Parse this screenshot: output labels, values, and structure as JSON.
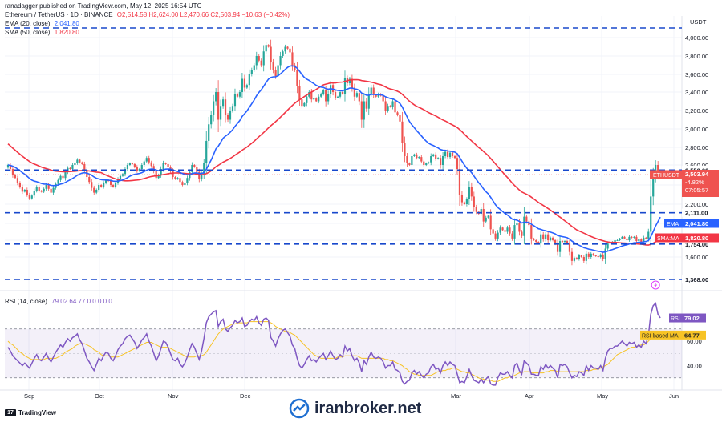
{
  "header": {
    "published": "ranadagger published on TradingView.com, May 12, 2025 16:54 UTC"
  },
  "legend": {
    "symbol": "Ethereum / TetherUS · 1D · BINANCE",
    "ohlc": "O2,514.58 H2,624.00 L2,470.66 C2,503.94 −10.63 (−0.42%)",
    "ema": {
      "label": "EMA (20, close)",
      "value": "2,041.80"
    },
    "sma": {
      "label": "SMA (50, close)",
      "value": "1,820.80"
    },
    "rsi": {
      "label": "RSI (14, close)",
      "values": "79.02 64.77 0 0 0 0 0"
    }
  },
  "colors": {
    "up": "#26a69a",
    "down": "#ef5350",
    "ema": "#2962ff",
    "sma": "#f23645",
    "rsi": "#7e57c2",
    "rsi_ma": "#f7c325",
    "level_line": "#1848cc"
  },
  "chart_data": [
    {
      "type": "candlestick",
      "pair": "ETHUSDT",
      "currency_label": "USDT",
      "y_ticks": [
        1600,
        1800,
        2000,
        2200,
        2400,
        2600,
        2800,
        3000,
        3200,
        3400,
        3600,
        3800,
        4000
      ],
      "y_tick_labels": [
        "1,600.00",
        "1,800.00",
        "2,000.00",
        "2,200.00",
        "2,400.00",
        "2,600.00",
        "2,800.00",
        "3,000.00",
        "3,200.00",
        "3,400.00",
        "3,600.00",
        "3,800.00",
        "4,000.00"
      ],
      "ylim": [
        1368,
        4100
      ],
      "x_labels": [
        "Sep",
        "Oct",
        "Nov",
        "Dec",
        "Mar",
        "Apr",
        "May",
        "Jun"
      ],
      "horizontal_levels": [
        {
          "value": 4100,
          "label": ""
        },
        {
          "value": 2550,
          "label": "2,550.00"
        },
        {
          "value": 2111,
          "label": "2,111.00"
        },
        {
          "value": 1754,
          "label": "1,754.00"
        },
        {
          "value": 1368,
          "label": "1,368.00"
        }
      ],
      "last_price": {
        "symbol": "ETHUSDT",
        "value": "2,503.94",
        "change": "-4.82%",
        "countdown": "07:05:57"
      },
      "ema_tag": {
        "name": "EMA",
        "value": "2,041.80"
      },
      "sma_tag": {
        "name": "SMA:MA",
        "value": "1,820.80"
      },
      "close_series_note": "daily closes, approx.",
      "closes": [
        2600,
        2560,
        2500,
        2470,
        2420,
        2380,
        2330,
        2350,
        2300,
        2260,
        2290,
        2340,
        2380,
        2340,
        2330,
        2360,
        2400,
        2360,
        2320,
        2370,
        2410,
        2450,
        2490,
        2470,
        2530,
        2570,
        2560,
        2600,
        2620,
        2660,
        2630,
        2610,
        2550,
        2480,
        2430,
        2370,
        2320,
        2350,
        2400,
        2380,
        2420,
        2450,
        2440,
        2400,
        2380,
        2420,
        2460,
        2490,
        2510,
        2560,
        2600,
        2620,
        2610,
        2580,
        2540,
        2560,
        2600,
        2640,
        2680,
        2630,
        2590,
        2540,
        2470,
        2500,
        2560,
        2620,
        2610,
        2580,
        2540,
        2480,
        2460,
        2470,
        2430,
        2400,
        2420,
        2470,
        2530,
        2600,
        2580,
        2530,
        2460,
        2510,
        2620,
        2870,
        3050,
        3150,
        3300,
        3400,
        3100,
        3250,
        3320,
        3150,
        3100,
        3200,
        3250,
        3380,
        3350,
        3400,
        3550,
        3450,
        3480,
        3600,
        3650,
        3700,
        3800,
        3750,
        3700,
        3850,
        3920,
        3900,
        3730,
        3650,
        3580,
        3700,
        3800,
        3850,
        3900,
        3880,
        3840,
        3700,
        3650,
        3470,
        3320,
        3250,
        3280,
        3350,
        3400,
        3320,
        3330,
        3300,
        3350,
        3380,
        3420,
        3300,
        3380,
        3480,
        3400,
        3340,
        3350,
        3400,
        3380,
        3560,
        3500,
        3550,
        3450,
        3350,
        3390,
        3300,
        3100,
        3300,
        3220,
        3380,
        3450,
        3370,
        3350,
        3380,
        3360,
        3300,
        3200,
        3250,
        3240,
        3300,
        3180,
        3150,
        3080,
        2850,
        2700,
        2620,
        2600,
        2700,
        2720,
        2680,
        2690,
        2640,
        2600,
        2620,
        2630,
        2700,
        2720,
        2670,
        2680,
        2600,
        2700,
        2750,
        2690,
        2740,
        2700,
        2680,
        2560,
        2300,
        2220,
        2200,
        2250,
        2380,
        2280,
        2170,
        2120,
        2100,
        2150,
        2020,
        2060,
        2080,
        1930,
        1880,
        1820,
        1890,
        1950,
        1920,
        1900,
        1950,
        1880,
        1820,
        1980,
        2000,
        1900,
        1850,
        2070,
        2020,
        1980,
        1820,
        1800,
        1780,
        1760,
        1870,
        1810,
        1870,
        1800,
        1830,
        1800,
        1760,
        1660,
        1790,
        1780,
        1790,
        1760,
        1660,
        1560,
        1590,
        1580,
        1620,
        1600,
        1560,
        1640,
        1600,
        1640,
        1620,
        1610,
        1600,
        1630,
        1580,
        1700,
        1760,
        1780,
        1780,
        1800,
        1800,
        1820,
        1840,
        1820,
        1800,
        1840,
        1830,
        1840,
        1790,
        1810,
        1780,
        1830,
        1820,
        1900,
        2280,
        2480,
        2600,
        2500,
        2504
      ]
    },
    {
      "type": "line",
      "name": "RSI (14, close)",
      "ylim": [
        20,
        100
      ],
      "y_ticks": [
        40,
        60
      ],
      "y_tick_labels": [
        "40.00",
        "60.00"
      ],
      "band": [
        30,
        70
      ],
      "rsi_tag": {
        "name": "RSI",
        "value": "79.02"
      },
      "rsi_ma_tag": {
        "name": "RSI-based MA",
        "value": "64.77"
      },
      "rsi": [
        55,
        52,
        48,
        46,
        44,
        42,
        40,
        42,
        40,
        38,
        42,
        46,
        49,
        45,
        44,
        47,
        50,
        46,
        43,
        47,
        51,
        54,
        57,
        55,
        59,
        62,
        60,
        63,
        64,
        66,
        61,
        58,
        52,
        46,
        43,
        39,
        36,
        41,
        46,
        44,
        48,
        51,
        50,
        46,
        44,
        48,
        53,
        56,
        58,
        62,
        64,
        65,
        62,
        59,
        54,
        57,
        61,
        63,
        66,
        60,
        56,
        50,
        44,
        48,
        54,
        60,
        59,
        55,
        50,
        45,
        44,
        46,
        41,
        39,
        42,
        47,
        53,
        58,
        55,
        50,
        45,
        52,
        62,
        75,
        80,
        82,
        84,
        85,
        72,
        76,
        78,
        70,
        68,
        71,
        73,
        77,
        75,
        76,
        79,
        72,
        73,
        76,
        78,
        77,
        80,
        75,
        73,
        78,
        79,
        77,
        63,
        60,
        56,
        62,
        66,
        69,
        70,
        67,
        64,
        57,
        54,
        46,
        40,
        38,
        41,
        45,
        48,
        44,
        45,
        43,
        46,
        48,
        50,
        45,
        48,
        52,
        48,
        45,
        46,
        49,
        47,
        56,
        52,
        54,
        48,
        44,
        46,
        42,
        35,
        44,
        41,
        47,
        51,
        47,
        46,
        47,
        46,
        43,
        38,
        40,
        40,
        43,
        37,
        36,
        34,
        27,
        25,
        27,
        28,
        34,
        36,
        33,
        35,
        32,
        30,
        33,
        34,
        39,
        41,
        37,
        38,
        34,
        40,
        43,
        40,
        43,
        41,
        40,
        33,
        26,
        27,
        26,
        31,
        37,
        32,
        28,
        27,
        26,
        29,
        26,
        29,
        31,
        25,
        24,
        24,
        30,
        34,
        33,
        33,
        35,
        32,
        30,
        40,
        42,
        36,
        33,
        44,
        42,
        40,
        33,
        33,
        32,
        32,
        39,
        37,
        41,
        38,
        40,
        38,
        36,
        30,
        41,
        40,
        41,
        39,
        34,
        30,
        32,
        31,
        35,
        34,
        32,
        40,
        36,
        40,
        38,
        38,
        37,
        40,
        36,
        46,
        52,
        54,
        54,
        56,
        56,
        58,
        60,
        58,
        56,
        59,
        58,
        59,
        55,
        57,
        55,
        60,
        58,
        65,
        82,
        89,
        91,
        82,
        79
      ],
      "rsi_ma": [
        60,
        58,
        57,
        55,
        53,
        51,
        50,
        48,
        47,
        46,
        45,
        45,
        45,
        45,
        45,
        45,
        46,
        46,
        46,
        46,
        46,
        47,
        48,
        49,
        51,
        52,
        53,
        54,
        56,
        57,
        58,
        58,
        58,
        57,
        56,
        55,
        53,
        52,
        51,
        49,
        48,
        48,
        48,
        47,
        47,
        47,
        47,
        48,
        49,
        50,
        51,
        52,
        53,
        54,
        55,
        56,
        57,
        58,
        59,
        59,
        59,
        58,
        57,
        56,
        55,
        55,
        55,
        55,
        54,
        53,
        52,
        51,
        50,
        49,
        48,
        47,
        47,
        47,
        47,
        48,
        48,
        48,
        49,
        51,
        54,
        57,
        60,
        63,
        66,
        68,
        70,
        71,
        72,
        73,
        74,
        74,
        75,
        75,
        75,
        75,
        75,
        76,
        76,
        76,
        76,
        76,
        76,
        76,
        76,
        76,
        75,
        74,
        72,
        71,
        70,
        69,
        68,
        68,
        67,
        66,
        65,
        63,
        61,
        59,
        57,
        55,
        53,
        51,
        49,
        48,
        47,
        46,
        46,
        46,
        46,
        46,
        46,
        46,
        47,
        47,
        47,
        48,
        48,
        48,
        48,
        48,
        48,
        47,
        46,
        46,
        46,
        46,
        46,
        46,
        46,
        46,
        46,
        46,
        45,
        45,
        44,
        44,
        43,
        42,
        41,
        40,
        38,
        37,
        35,
        34,
        33,
        33,
        32,
        32,
        32,
        32,
        32,
        32,
        33,
        34,
        35,
        35,
        36,
        36,
        37,
        37,
        38,
        38,
        37,
        36,
        35,
        35,
        34,
        34,
        33,
        32,
        31,
        30,
        29,
        29,
        28,
        28,
        28,
        27,
        27,
        27,
        28,
        29,
        30,
        30,
        31,
        31,
        32,
        33,
        34,
        34,
        35,
        35,
        35,
        34,
        34,
        34,
        34,
        34,
        34,
        35,
        35,
        36,
        36,
        36,
        35,
        35,
        35,
        35,
        35,
        35,
        35,
        35,
        35,
        35,
        35,
        35,
        36,
        36,
        36,
        37,
        37,
        37,
        38,
        39,
        40,
        41,
        43,
        45,
        47,
        49,
        50,
        51,
        52,
        53,
        54,
        55,
        55,
        56,
        56,
        57,
        57,
        58,
        60,
        62,
        63,
        64,
        65
      ]
    }
  ],
  "watermark": {
    "text": "iranbroker.net"
  },
  "footer": {
    "tradingview": "TradingView"
  }
}
